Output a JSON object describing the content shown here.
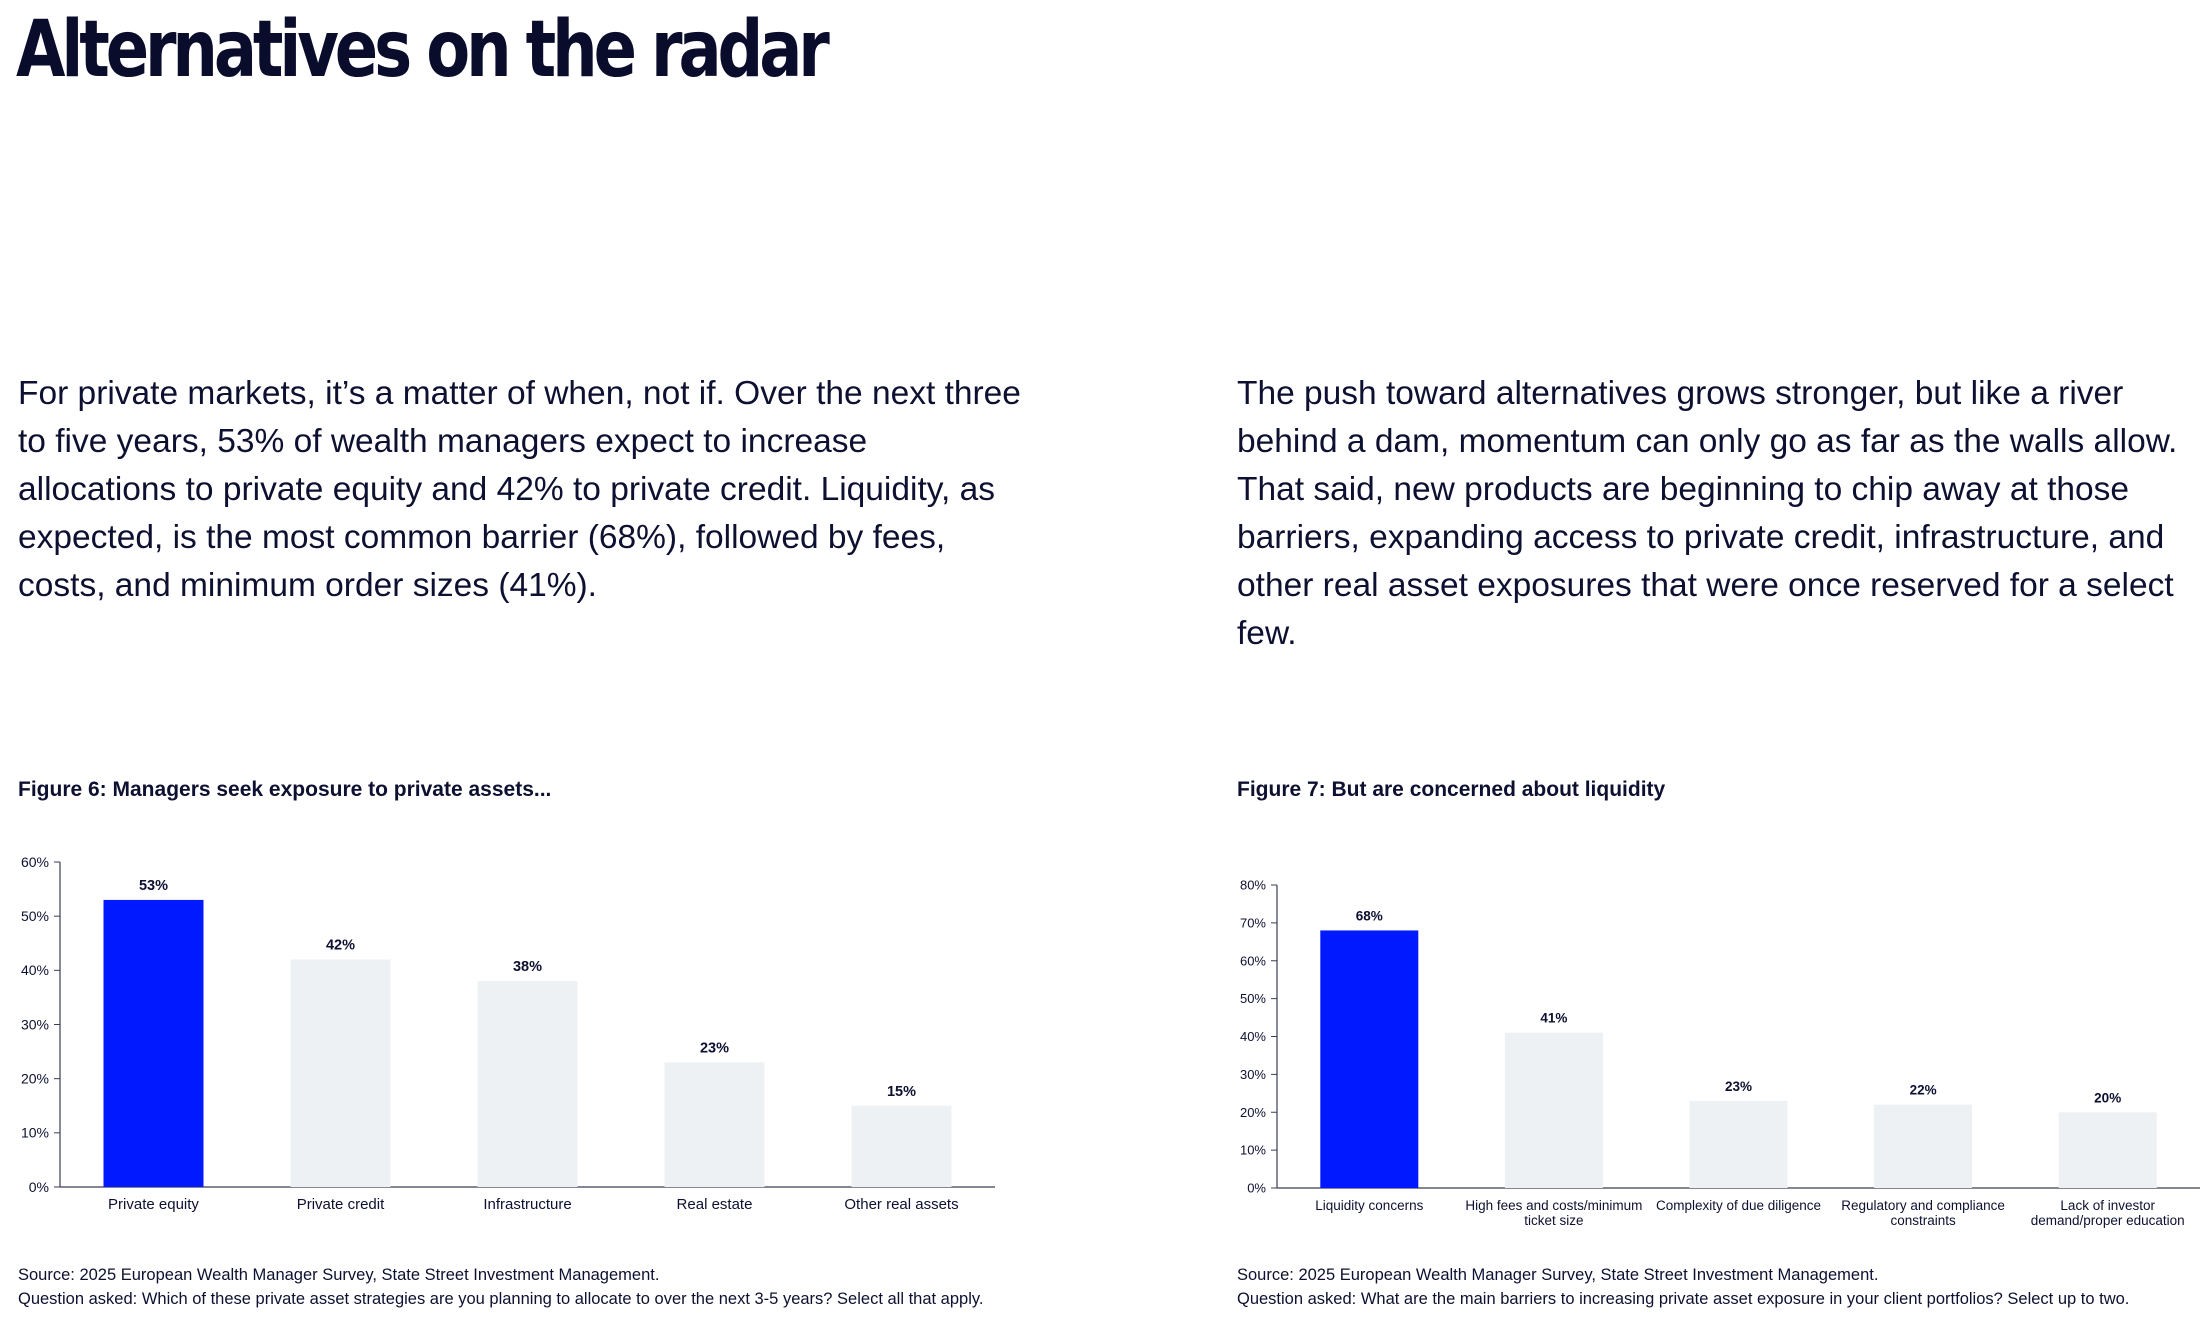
{
  "page": {
    "title": "Alternatives on the radar",
    "intro_left": "For private markets, it’s a matter of when, not if. Over the next three to five years, 53% of wealth managers expect to increase allocations to private equity and 42% to private credit. Liquidity, as expected, is the most common barrier (68%), followed by fees, costs, and minimum order sizes (41%).",
    "intro_right": "The push toward alternatives grows stronger, but like a river behind a dam, momentum can only go as far as the walls allow. That said, new products are beginning to chip away at those barriers, expanding access to private credit, infrastructure, and other real asset exposures that were once reserved for a select few."
  },
  "figures": [
    {
      "title": "Figure 6: Managers seek exposure to private assets...",
      "source": "Source: 2025 European Wealth Manager Survey, State Street Investment Management.",
      "question": "Question asked: Which of these private asset strategies are you planning to allocate to over the next 3-5 years? Select all that apply."
    },
    {
      "title": "Figure 7: But are concerned about liquidity",
      "source": "Source: 2025 European Wealth Manager Survey, State Street Investment Management.",
      "question": "Question asked: What are the main barriers to increasing private asset exposure in your client portfolios? Select up to two."
    }
  ],
  "colors": {
    "highlight_bar": "#0019ff",
    "other_bar": "#edf1f4",
    "axis": "#3a3d55",
    "text": "#0d1030"
  },
  "chart_data": [
    {
      "type": "bar",
      "title": "Figure 6: Managers seek exposure to private assets...",
      "categories": [
        "Private equity",
        "Private credit",
        "Infrastructure",
        "Real estate",
        "Other real assets"
      ],
      "values": [
        53,
        42,
        38,
        23,
        15
      ],
      "value_labels": [
        "53%",
        "42%",
        "38%",
        "23%",
        "15%"
      ],
      "highlight_index": 0,
      "ylim": [
        0,
        60
      ],
      "yticks": [
        "0%",
        "10%",
        "20%",
        "30%",
        "40%",
        "50%",
        "60%"
      ],
      "grid": false,
      "legend": "none"
    },
    {
      "type": "bar",
      "title": "Figure 7: But are concerned about liquidity",
      "categories": [
        [
          "Liquidity concerns"
        ],
        [
          "High fees and costs/minimum",
          "ticket size"
        ],
        [
          "Complexity of due diligence"
        ],
        [
          "Regulatory and compliance",
          "constraints"
        ],
        [
          "Lack of investor",
          "demand/proper education"
        ]
      ],
      "values": [
        68,
        41,
        23,
        22,
        20
      ],
      "value_labels": [
        "68%",
        "41%",
        "23%",
        "22%",
        "20%"
      ],
      "highlight_index": 0,
      "ylim": [
        0,
        80
      ],
      "yticks": [
        "0%",
        "10%",
        "20%",
        "30%",
        "40%",
        "50%",
        "60%",
        "70%",
        "80%"
      ],
      "grid": false,
      "legend": "none"
    }
  ]
}
